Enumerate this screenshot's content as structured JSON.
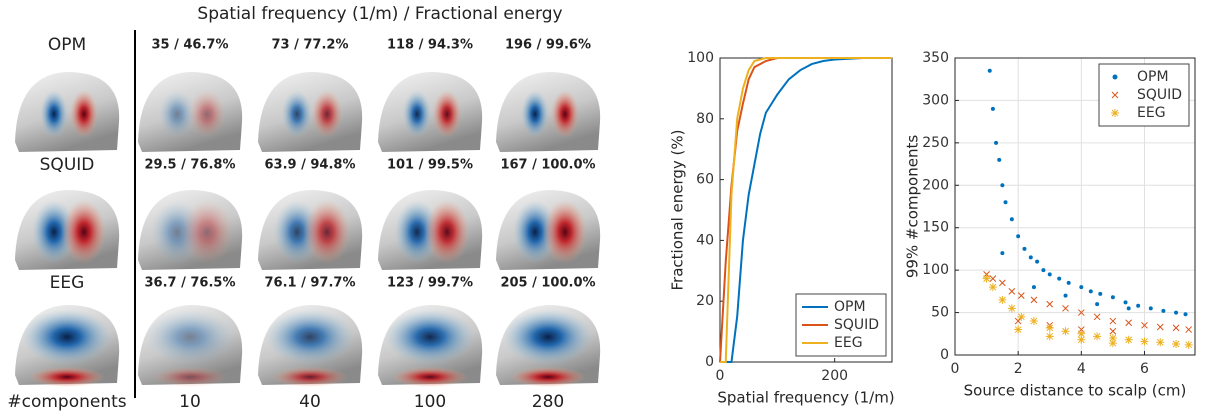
{
  "figure": {
    "title": "Spatial frequency (1/m) / Fractional energy",
    "rows": [
      {
        "label": "OPM",
        "cells": [
          "35 / 46.7%",
          "73 / 77.2%",
          "118 / 94.3%",
          "196 / 99.6%"
        ]
      },
      {
        "label": "SQUID",
        "cells": [
          "29.5 / 76.8%",
          "63.9 / 94.8%",
          "101 / 99.5%",
          "167 / 100.0%"
        ]
      },
      {
        "label": "EEG",
        "cells": [
          "36.7 / 76.5%",
          "76.1 / 97.7%",
          "123 / 99.7%",
          "205 / 100.0%"
        ]
      }
    ],
    "footer_label": "#components",
    "columns": [
      10,
      40,
      100,
      280
    ]
  },
  "chart_data": [
    {
      "type": "line",
      "xlabel": "Spatial frequency (1/m)",
      "ylabel": "Fractional energy (%)",
      "x": [
        0,
        10,
        20,
        30,
        40,
        50,
        60,
        70,
        80,
        90,
        100,
        120,
        140,
        160,
        180,
        200,
        250,
        300
      ],
      "series": [
        {
          "name": "OPM",
          "color": "#0072bd",
          "values": [
            0,
            0,
            0,
            15,
            40,
            55,
            65,
            75,
            82,
            85,
            88,
            93,
            96,
            98,
            99,
            99.5,
            100,
            100
          ]
        },
        {
          "name": "SQUID",
          "color": "#d95319",
          "values": [
            0,
            33,
            58,
            76,
            85,
            93,
            97,
            98,
            99,
            99.5,
            100,
            100,
            100,
            100,
            100,
            100,
            100,
            100
          ]
        },
        {
          "name": "EEG",
          "color": "#edb120",
          "values": [
            0,
            0,
            55,
            80,
            90,
            96,
            99,
            99.5,
            100,
            100,
            100,
            100,
            100,
            100,
            100,
            100,
            100,
            100
          ]
        }
      ],
      "xlim": [
        0,
        300
      ],
      "xticks": [
        0,
        200
      ],
      "ylim": [
        0,
        100
      ],
      "yticks": [
        0,
        20,
        40,
        60,
        80,
        100
      ],
      "grid": false,
      "legend": "lower right"
    },
    {
      "type": "scatter",
      "xlabel": "Source distance to scalp (cm)",
      "ylabel": "99% #components",
      "series": [
        {
          "name": "OPM",
          "color": "#0072bd",
          "marker": "dot",
          "x": [
            1.1,
            1.2,
            1.3,
            1.4,
            1.5,
            1.6,
            1.8,
            2.0,
            2.2,
            2.4,
            2.6,
            2.8,
            3.0,
            3.3,
            3.6,
            4.0,
            4.3,
            4.6,
            5.0,
            5.4,
            5.8,
            6.2,
            6.6,
            7.0,
            7.3,
            1.5,
            2.5,
            3.5,
            4.5,
            5.5
          ],
          "values": [
            335,
            290,
            250,
            230,
            200,
            180,
            160,
            140,
            125,
            115,
            110,
            100,
            95,
            90,
            85,
            80,
            75,
            72,
            68,
            62,
            58,
            55,
            52,
            50,
            48,
            120,
            80,
            70,
            60,
            55
          ]
        },
        {
          "name": "SQUID",
          "color": "#d95319",
          "marker": "x",
          "x": [
            1.0,
            1.2,
            1.5,
            1.8,
            2.1,
            2.5,
            3.0,
            3.5,
            4.0,
            4.5,
            5.0,
            5.5,
            6.0,
            6.5,
            7.0,
            7.4,
            2.0,
            3.0,
            4.0,
            5.0
          ],
          "values": [
            95,
            90,
            85,
            75,
            70,
            65,
            60,
            55,
            50,
            45,
            40,
            38,
            35,
            33,
            32,
            30,
            40,
            35,
            30,
            28
          ]
        },
        {
          "name": "EEG",
          "color": "#edb120",
          "marker": "star",
          "x": [
            1.0,
            1.2,
            1.5,
            1.8,
            2.1,
            2.5,
            3.0,
            3.5,
            4.0,
            4.5,
            5.0,
            5.5,
            6.0,
            6.5,
            7.0,
            7.4,
            2.0,
            3.0,
            4.0,
            5.0
          ],
          "values": [
            90,
            80,
            65,
            55,
            45,
            40,
            32,
            28,
            25,
            22,
            20,
            18,
            16,
            15,
            13,
            12,
            30,
            22,
            18,
            14
          ]
        }
      ],
      "xlim": [
        0,
        7.6
      ],
      "xticks": [
        0,
        2,
        4,
        6
      ],
      "ylim": [
        0,
        350
      ],
      "yticks": [
        0,
        50,
        100,
        150,
        200,
        250,
        300,
        350
      ],
      "grid": true,
      "legend": "upper right"
    }
  ]
}
